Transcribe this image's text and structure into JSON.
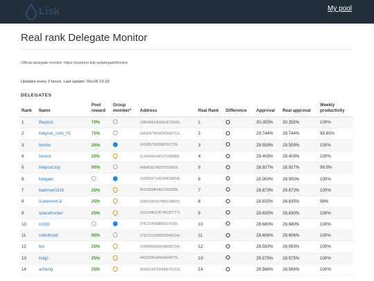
{
  "header": {
    "logo_text": "Lisk",
    "my_pool_label": "My pool"
  },
  "page": {
    "title": "Real rank Delegate Monitor",
    "official_label": "Official delegate monitor:",
    "official_link": "https://explorer.lisk.io/delegateMonitor",
    "updates": "Updates every 2 hours. Last update: Dec26 23:20",
    "section": "DELEGATES"
  },
  "table": {
    "headers": {
      "rank": "Rank",
      "name": "Name",
      "pool_reward": "Pool reward",
      "group_member": "Group member*",
      "address": "Address",
      "real_rank": "Real Rank",
      "difference": "Difference",
      "approval": "Approval",
      "real_approval": "Real approval",
      "weekly_productivity": "Weekly productivity"
    },
    "rows": [
      {
        "rank": "1",
        "name": "thepool",
        "reward": "70%",
        "member": "open",
        "address": "10809494368003872009L",
        "real_rank": "1",
        "approval": "30.355%",
        "real_approval": "30.355%",
        "productivity": "100%"
      },
      {
        "rank": "2",
        "name": "liskpool_com_01",
        "reward": "75%",
        "member": "open",
        "address": "14593474056247442712L",
        "real_rank": "2",
        "approval": "29.744%",
        "real_approval": "29.744%",
        "productivity": "99.83%"
      },
      {
        "rank": "3",
        "name": "tembo",
        "reward": "25%",
        "member": "blue",
        "address": "2433857930558702776L",
        "real_rank": "3",
        "approval": "29.559%",
        "real_approval": "29.559%",
        "productivity": "100%"
      },
      {
        "rank": "4",
        "name": "forrest",
        "reward": "25%",
        "member": "pin",
        "address": "11416406146107258985L",
        "real_rank": "4",
        "approval": "29.409%",
        "real_approval": "29.409%",
        "productivity": "100%"
      },
      {
        "rank": "5",
        "name": "liskpool.top",
        "reward": "90%",
        "member": "open",
        "address": "4094636149257692063L",
        "real_rank": "5",
        "approval": "28.927%",
        "real_approval": "28.927%",
        "productivity": "99.5%"
      },
      {
        "rank": "6",
        "name": "liskgate",
        "reward": "",
        "member": "both",
        "address": "16356097149140416854L",
        "real_rank": "6",
        "approval": "28.900%",
        "real_approval": "28.900%",
        "productivity": "100%"
      },
      {
        "rank": "7",
        "name": "badman0316",
        "reward": "25%",
        "member": "pin",
        "address": "8015959860607939388L",
        "real_rank": "7",
        "approval": "28.873%",
        "real_approval": "28.873%",
        "productivity": "100%"
      },
      {
        "rank": "8",
        "name": "iii.element.iii",
        "reward": "25%",
        "member": "pin",
        "address": "13943256167405318820L",
        "real_rank": "8",
        "approval": "28.835%",
        "real_approval": "28.835%",
        "productivity": "98%"
      },
      {
        "rank": "9",
        "name": "spacetrucker",
        "reward": "25%",
        "member": "pin",
        "address": "14212484126746187777L",
        "real_rank": "9",
        "approval": "28.830%",
        "real_approval": "28.830%",
        "productivity": "100%"
      },
      {
        "rank": "10",
        "name": "cc001",
        "reward": "",
        "member": "both",
        "address": "6787154358850114730L",
        "real_rank": "10",
        "approval": "28.680%",
        "real_approval": "28.680%",
        "productivity": "100%"
      },
      {
        "rank": "11",
        "name": "robinhood",
        "reward": "90%",
        "member": "open",
        "address": "17621212458226596154L",
        "real_rank": "11",
        "approval": "28.606%",
        "real_approval": "28.606%",
        "productivity": "100%"
      },
      {
        "rank": "12",
        "name": "leo",
        "reward": "25%",
        "member": "pin",
        "address": "15458001843048965734L",
        "real_rank": "12",
        "approval": "28.593%",
        "real_approval": "28.593%",
        "productivity": "100%"
      },
      {
        "rank": "13",
        "name": "liskjp",
        "reward": "25%",
        "member": "pin",
        "address": "4402625644304434270L",
        "real_rank": "13",
        "approval": "28.575%",
        "real_approval": "28.575%",
        "productivity": "100%"
      },
      {
        "rank": "14",
        "name": "acheng",
        "reward": "25%",
        "member": "pin",
        "address": "15435156702499576722L",
        "real_rank": "14",
        "approval": "28.566%",
        "real_approval": "28.566%",
        "productivity": "100%"
      }
    ]
  }
}
